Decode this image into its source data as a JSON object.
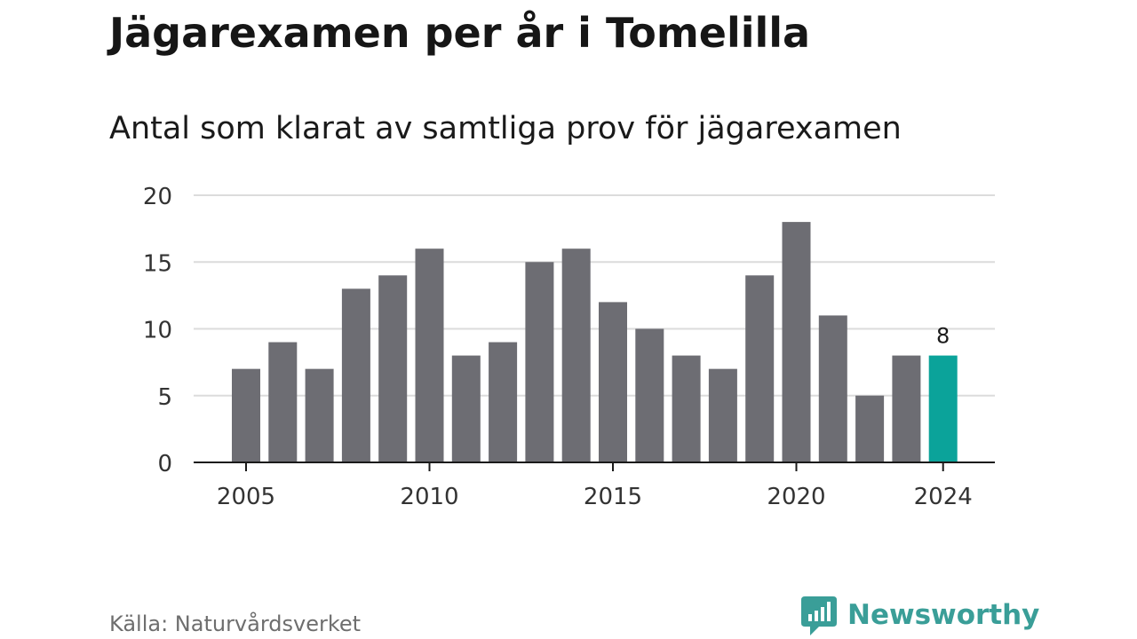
{
  "header": {
    "title": "Jägarexamen per år i Tomelilla",
    "subtitle": "Antal som klarat av samtliga prov för jägarexamen"
  },
  "footer": {
    "source": "Källa: Naturvårdsverket",
    "brand": "Newsworthy",
    "brand_icon": "chart-bubble-icon"
  },
  "colors": {
    "bar": "#6d6d73",
    "highlight": "#0ba39a",
    "grid": "#dcdcdc",
    "axis": "#1a1a1a",
    "brand": "#3a9e98"
  },
  "chart_data": {
    "type": "bar",
    "title": "Jägarexamen per år i Tomelilla",
    "subtitle": "Antal som klarat av samtliga prov för jägarexamen",
    "xlabel": "",
    "ylabel": "",
    "categories": [
      2005,
      2006,
      2007,
      2008,
      2009,
      2010,
      2011,
      2012,
      2013,
      2014,
      2015,
      2016,
      2017,
      2018,
      2019,
      2020,
      2021,
      2022,
      2023,
      2024
    ],
    "values": [
      7,
      9,
      7,
      13,
      14,
      16,
      8,
      9,
      15,
      16,
      12,
      10,
      8,
      7,
      14,
      18,
      11,
      5,
      8,
      8
    ],
    "ylim": [
      0,
      20
    ],
    "yticks": [
      0,
      5,
      10,
      15,
      20
    ],
    "xticks": [
      2005,
      2010,
      2015,
      2020,
      2024
    ],
    "highlight_category": 2024,
    "data_labels": [
      {
        "category": 2024,
        "label": "8"
      }
    ],
    "grid": true,
    "legend": "none"
  }
}
